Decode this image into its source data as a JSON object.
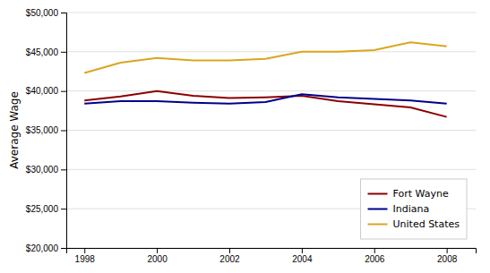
{
  "chart_data": {
    "type": "line",
    "y_label": "Average Wage",
    "x": [
      1998,
      1999,
      2000,
      2001,
      2002,
      2003,
      2004,
      2005,
      2006,
      2007,
      2008
    ],
    "series": [
      {
        "name": "Fort Wayne",
        "color": "#8B0000",
        "values": [
          38800,
          39300,
          40000,
          39400,
          39100,
          39200,
          39400,
          38700,
          38300,
          37900,
          36700
        ]
      },
      {
        "name": "Indiana",
        "color": "#00008B",
        "values": [
          38400,
          38700,
          38700,
          38500,
          38400,
          38600,
          39600,
          39200,
          39000,
          38800,
          38400
        ]
      },
      {
        "name": "United States",
        "color": "#DAA520",
        "values": [
          42300,
          43600,
          44200,
          43900,
          43900,
          44100,
          45000,
          45000,
          45200,
          46200,
          45700
        ]
      }
    ],
    "xlim": [
      1997.5,
      2008.8
    ],
    "xticks": [
      1998,
      2000,
      2002,
      2004,
      2006,
      2008
    ],
    "ylim": [
      20000,
      50000
    ],
    "yticks": [
      {
        "value": 20000,
        "label": "$20,000"
      },
      {
        "value": 25000,
        "label": "$25,000"
      },
      {
        "value": 30000,
        "label": "$30,000"
      },
      {
        "value": 35000,
        "label": "$35,000"
      },
      {
        "value": 40000,
        "label": "$40,000"
      },
      {
        "value": 45000,
        "label": "$45,000"
      },
      {
        "value": 50000,
        "label": "$50,000"
      }
    ],
    "grid": true,
    "legend": "lower right"
  }
}
